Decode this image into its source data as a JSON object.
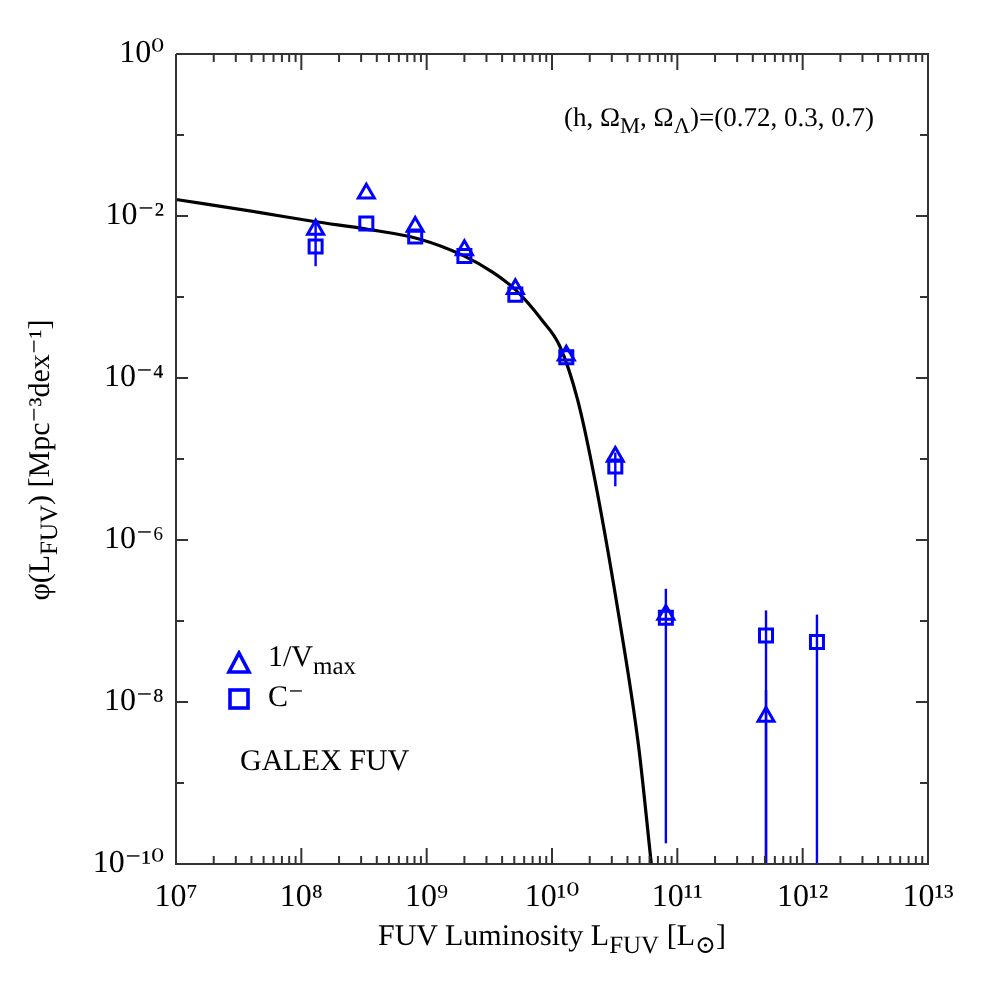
{
  "chart_data": {
    "type": "scatter",
    "xlabel": "FUV Luminosity L$_{FUV}$ [L$_{⊙}$]",
    "ylabel": "φ(L$_{FUV}$) [Mpc⁻³dex⁻¹]",
    "annotations": [
      "(h, Ω$_{M}$, Ω$_{Λ}$)=(0.72, 0.3, 0.7)",
      "GALEX FUV"
    ],
    "log": "xy",
    "legend": "bottom left",
    "xlim": [
      10000000.0,
      10000000000000.0
    ],
    "ylim": [
      1e-10,
      1
    ],
    "xticks": [
      {
        "value": 10000000.0,
        "label": "10⁷"
      },
      {
        "value": 20000000.0,
        "label": null
      },
      {
        "value": 30000000.0,
        "label": null
      },
      {
        "value": 40000000.0,
        "label": null
      },
      {
        "value": 50000000.0,
        "label": null
      },
      {
        "value": 60000000.0,
        "label": null
      },
      {
        "value": 70000000.0,
        "label": null
      },
      {
        "value": 80000000.0,
        "label": null
      },
      {
        "value": 90000000.0,
        "label": null
      },
      {
        "value": 100000000.0,
        "label": "10⁸"
      },
      {
        "value": 200000000.0,
        "label": null
      },
      {
        "value": 300000000.0,
        "label": null
      },
      {
        "value": 400000000.0,
        "label": null
      },
      {
        "value": 500000000.0,
        "label": null
      },
      {
        "value": 600000000.0,
        "label": null
      },
      {
        "value": 700000000.0,
        "label": null
      },
      {
        "value": 800000000.0,
        "label": null
      },
      {
        "value": 900000000.0,
        "label": null
      },
      {
        "value": 1000000000.0,
        "label": "10⁹"
      },
      {
        "value": 2000000000.0,
        "label": null
      },
      {
        "value": 3000000000.0,
        "label": null
      },
      {
        "value": 4000000000.0,
        "label": null
      },
      {
        "value": 5000000000.0,
        "label": null
      },
      {
        "value": 6000000000.0,
        "label": null
      },
      {
        "value": 7000000000.0,
        "label": null
      },
      {
        "value": 8000000000.0,
        "label": null
      },
      {
        "value": 9000000000.0,
        "label": null
      },
      {
        "value": 10000000000.0,
        "label": "10¹⁰"
      },
      {
        "value": 20000000000.0,
        "label": null
      },
      {
        "value": 30000000000.0,
        "label": null
      },
      {
        "value": 40000000000.0,
        "label": null
      },
      {
        "value": 50000000000.0,
        "label": null
      },
      {
        "value": 60000000000.0,
        "label": null
      },
      {
        "value": 70000000000.0,
        "label": null
      },
      {
        "value": 80000000000.0,
        "label": null
      },
      {
        "value": 90000000000.0,
        "label": null
      },
      {
        "value": 100000000000.0,
        "label": "10¹¹"
      },
      {
        "value": 200000000000.0,
        "label": null
      },
      {
        "value": 300000000000.0,
        "label": null
      },
      {
        "value": 400000000000.0,
        "label": null
      },
      {
        "value": 500000000000.0,
        "label": null
      },
      {
        "value": 600000000000.0,
        "label": null
      },
      {
        "value": 700000000000.0,
        "label": null
      },
      {
        "value": 800000000000.0,
        "label": null
      },
      {
        "value": 900000000000.0,
        "label": null
      },
      {
        "value": 1000000000000.0,
        "label": "10¹²"
      },
      {
        "value": 2000000000000.0,
        "label": null
      },
      {
        "value": 3000000000000.0,
        "label": null
      },
      {
        "value": 4000000000000.0,
        "label": null
      },
      {
        "value": 5000000000000.0,
        "label": null
      },
      {
        "value": 6000000000000.0,
        "label": null
      },
      {
        "value": 7000000000000.0,
        "label": null
      },
      {
        "value": 8000000000000.0,
        "label": null
      },
      {
        "value": 9000000000000.0,
        "label": null
      },
      {
        "value": 10000000000000.0,
        "label": "10¹³"
      }
    ],
    "yticks": [
      {
        "value": 1,
        "label": "10⁰"
      },
      {
        "value": 0.1,
        "label": null
      },
      {
        "value": 0.01,
        "label": "10⁻²"
      },
      {
        "value": 0.001,
        "label": null
      },
      {
        "value": 0.0001,
        "label": "10⁻⁴"
      },
      {
        "value": 1e-05,
        "label": null
      },
      {
        "value": 1e-06,
        "label": "10⁻⁶"
      },
      {
        "value": 1e-07,
        "label": null
      },
      {
        "value": 1e-08,
        "label": "10⁻⁸"
      },
      {
        "value": 1e-09,
        "label": null
      },
      {
        "value": 1e-10,
        "label": "10⁻¹⁰"
      }
    ],
    "series": [
      {
        "name": "1/V$_{max}$",
        "type": "scatter",
        "marker": "triangle",
        "color": "#0000ff",
        "x": [
          130000000.0,
          330000000.0,
          810000000.0,
          2000000000.0,
          5100000000.0,
          13000000000.0,
          32000000000.0,
          81000000000.0,
          510000000000.0
        ],
        "values": [
          0.0068,
          0.019,
          0.0074,
          0.0038,
          0.00126,
          0.00019,
          1.07e-05,
          1.2e-07,
          6.6e-09
        ],
        "errors": [
          null,
          null,
          null,
          null,
          null,
          null,
          null,
          null,
          [
            1e-10,
            1.4e-08
          ]
        ]
      },
      {
        "name": "C⁻",
        "type": "scatter",
        "marker": "square",
        "color": "#0000ff",
        "x": [
          130000000.0,
          330000000.0,
          810000000.0,
          2000000000.0,
          5100000000.0,
          13000000000.0,
          32000000000.0,
          81000000000.0,
          510000000000.0,
          1300000000000.0
        ],
        "values": [
          0.0042,
          0.0081,
          0.0056,
          0.0032,
          0.00107,
          0.00018,
          8.1e-06,
          1.1e-07,
          6.6e-08,
          5.5e-08
        ],
        "errors": [
          [
            0.0024,
            0.0089
          ],
          null,
          null,
          null,
          null,
          null,
          [
            4.6e-06,
            1.2e-05
          ],
          [
            1.8e-10,
            2.5e-07
          ],
          [
            1e-10,
            1.35e-07
          ],
          [
            1e-10,
            1.2e-07
          ]
        ]
      },
      {
        "type": "line",
        "marker": "none",
        "color": "#000000",
        "x": [
          10000000.0,
          47000000.0,
          130000000.0,
          330000000.0,
          870000000.0,
          2000000000.0,
          3400000000.0,
          5100000000.0,
          8300000000.0,
          11500000000.0,
          16000000000.0,
          22000000000.0,
          34000000000.0,
          49000000000.0,
          62000000000.0
        ],
        "values": [
          0.016,
          0.011,
          0.0085,
          0.0069,
          0.0052,
          0.0032,
          0.002,
          0.00123,
          0.00052,
          0.00025,
          5.4e-05,
          5.5e-06,
          1.2e-07,
          2.9e-09,
          1e-10
        ]
      }
    ]
  }
}
